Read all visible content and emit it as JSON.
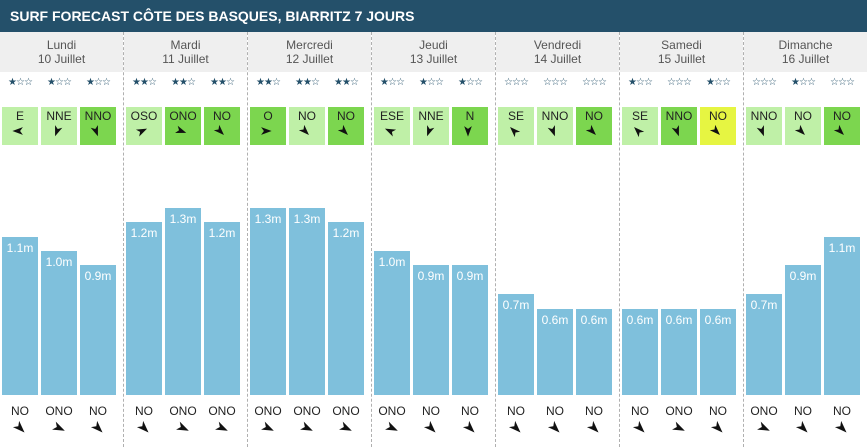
{
  "title": "SURF FORECAST CÔTE DES BASQUES, BIARRITZ 7 JOURS",
  "colors": {
    "header": "#24506a",
    "wind_light": "#bff0a7",
    "wind_medium": "#7cd64f",
    "wind_yellow": "#e6f542",
    "wave_bar": "#7fc0dc"
  },
  "days": [
    {
      "name": "Lundi",
      "date": "10 Juillet",
      "slots": [
        {
          "stars": "★☆☆",
          "wind": "E",
          "wind_color": "light",
          "wind_angle": 270,
          "wave": "1.1m",
          "wave_m": 1.1,
          "swell": "NO",
          "swell_angle": 135
        },
        {
          "stars": "★☆☆",
          "wind": "NNE",
          "wind_color": "light",
          "wind_angle": 200,
          "wave": "1.0m",
          "wave_m": 1.0,
          "swell": "ONO",
          "swell_angle": 115
        },
        {
          "stars": "★☆☆",
          "wind": "NNO",
          "wind_color": "medium",
          "wind_angle": 160,
          "wave": "0.9m",
          "wave_m": 0.9,
          "swell": "NO",
          "swell_angle": 135
        }
      ]
    },
    {
      "name": "Mardi",
      "date": "11 Juillet",
      "slots": [
        {
          "stars": "★★☆",
          "wind": "OSO",
          "wind_color": "light",
          "wind_angle": 65,
          "wave": "1.2m",
          "wave_m": 1.2,
          "swell": "NO",
          "swell_angle": 135
        },
        {
          "stars": "★★☆",
          "wind": "ONO",
          "wind_color": "medium",
          "wind_angle": 110,
          "wave": "1.3m",
          "wave_m": 1.3,
          "swell": "ONO",
          "swell_angle": 115
        },
        {
          "stars": "★★☆",
          "wind": "NO",
          "wind_color": "medium",
          "wind_angle": 135,
          "wave": "1.2m",
          "wave_m": 1.2,
          "swell": "ONO",
          "swell_angle": 115
        }
      ]
    },
    {
      "name": "Mercredi",
      "date": "12 Juillet",
      "slots": [
        {
          "stars": "★★☆",
          "wind": "O",
          "wind_color": "medium",
          "wind_angle": 90,
          "wave": "1.3m",
          "wave_m": 1.3,
          "swell": "ONO",
          "swell_angle": 115
        },
        {
          "stars": "★★☆",
          "wind": "NO",
          "wind_color": "light",
          "wind_angle": 135,
          "wave": "1.3m",
          "wave_m": 1.3,
          "swell": "ONO",
          "swell_angle": 115
        },
        {
          "stars": "★★☆",
          "wind": "NO",
          "wind_color": "medium",
          "wind_angle": 135,
          "wave": "1.2m",
          "wave_m": 1.2,
          "swell": "ONO",
          "swell_angle": 115
        }
      ]
    },
    {
      "name": "Jeudi",
      "date": "13 Juillet",
      "slots": [
        {
          "stars": "★☆☆",
          "wind": "ESE",
          "wind_color": "light",
          "wind_angle": 295,
          "wave": "1.0m",
          "wave_m": 1.0,
          "swell": "ONO",
          "swell_angle": 115
        },
        {
          "stars": "★☆☆",
          "wind": "NNE",
          "wind_color": "light",
          "wind_angle": 200,
          "wave": "0.9m",
          "wave_m": 0.9,
          "swell": "NO",
          "swell_angle": 135
        },
        {
          "stars": "★☆☆",
          "wind": "N",
          "wind_color": "medium",
          "wind_angle": 180,
          "wave": "0.9m",
          "wave_m": 0.9,
          "swell": "NO",
          "swell_angle": 135
        }
      ]
    },
    {
      "name": "Vendredi",
      "date": "14 Juillet",
      "slots": [
        {
          "stars": "☆☆☆",
          "wind": "SE",
          "wind_color": "light",
          "wind_angle": 315,
          "wave": "0.7m",
          "wave_m": 0.7,
          "swell": "NO",
          "swell_angle": 135
        },
        {
          "stars": "☆☆☆",
          "wind": "NNO",
          "wind_color": "light",
          "wind_angle": 160,
          "wave": "0.6m",
          "wave_m": 0.6,
          "swell": "NO",
          "swell_angle": 135
        },
        {
          "stars": "☆☆☆",
          "wind": "NO",
          "wind_color": "medium",
          "wind_angle": 135,
          "wave": "0.6m",
          "wave_m": 0.6,
          "swell": "NO",
          "swell_angle": 135
        }
      ]
    },
    {
      "name": "Samedi",
      "date": "15 Juillet",
      "slots": [
        {
          "stars": "★☆☆",
          "wind": "SE",
          "wind_color": "light",
          "wind_angle": 315,
          "wave": "0.6m",
          "wave_m": 0.6,
          "swell": "NO",
          "swell_angle": 135
        },
        {
          "stars": "☆☆☆",
          "wind": "NNO",
          "wind_color": "medium",
          "wind_angle": 160,
          "wave": "0.6m",
          "wave_m": 0.6,
          "swell": "ONO",
          "swell_angle": 115
        },
        {
          "stars": "★☆☆",
          "wind": "NO",
          "wind_color": "yellow",
          "wind_angle": 135,
          "wave": "0.6m",
          "wave_m": 0.6,
          "swell": "NO",
          "swell_angle": 135
        }
      ]
    },
    {
      "name": "Dimanche",
      "date": "16 Juillet",
      "slots": [
        {
          "stars": "☆☆☆",
          "wind": "NNO",
          "wind_color": "light",
          "wind_angle": 160,
          "wave": "0.7m",
          "wave_m": 0.7,
          "swell": "ONO",
          "swell_angle": 115
        },
        {
          "stars": "★☆☆",
          "wind": "NO",
          "wind_color": "light",
          "wind_angle": 135,
          "wave": "0.9m",
          "wave_m": 0.9,
          "swell": "NO",
          "swell_angle": 135
        },
        {
          "stars": "☆☆☆",
          "wind": "NO",
          "wind_color": "medium",
          "wind_angle": 135,
          "wave": "1.1m",
          "wave_m": 1.1,
          "swell": "NO",
          "swell_angle": 135
        }
      ]
    }
  ]
}
